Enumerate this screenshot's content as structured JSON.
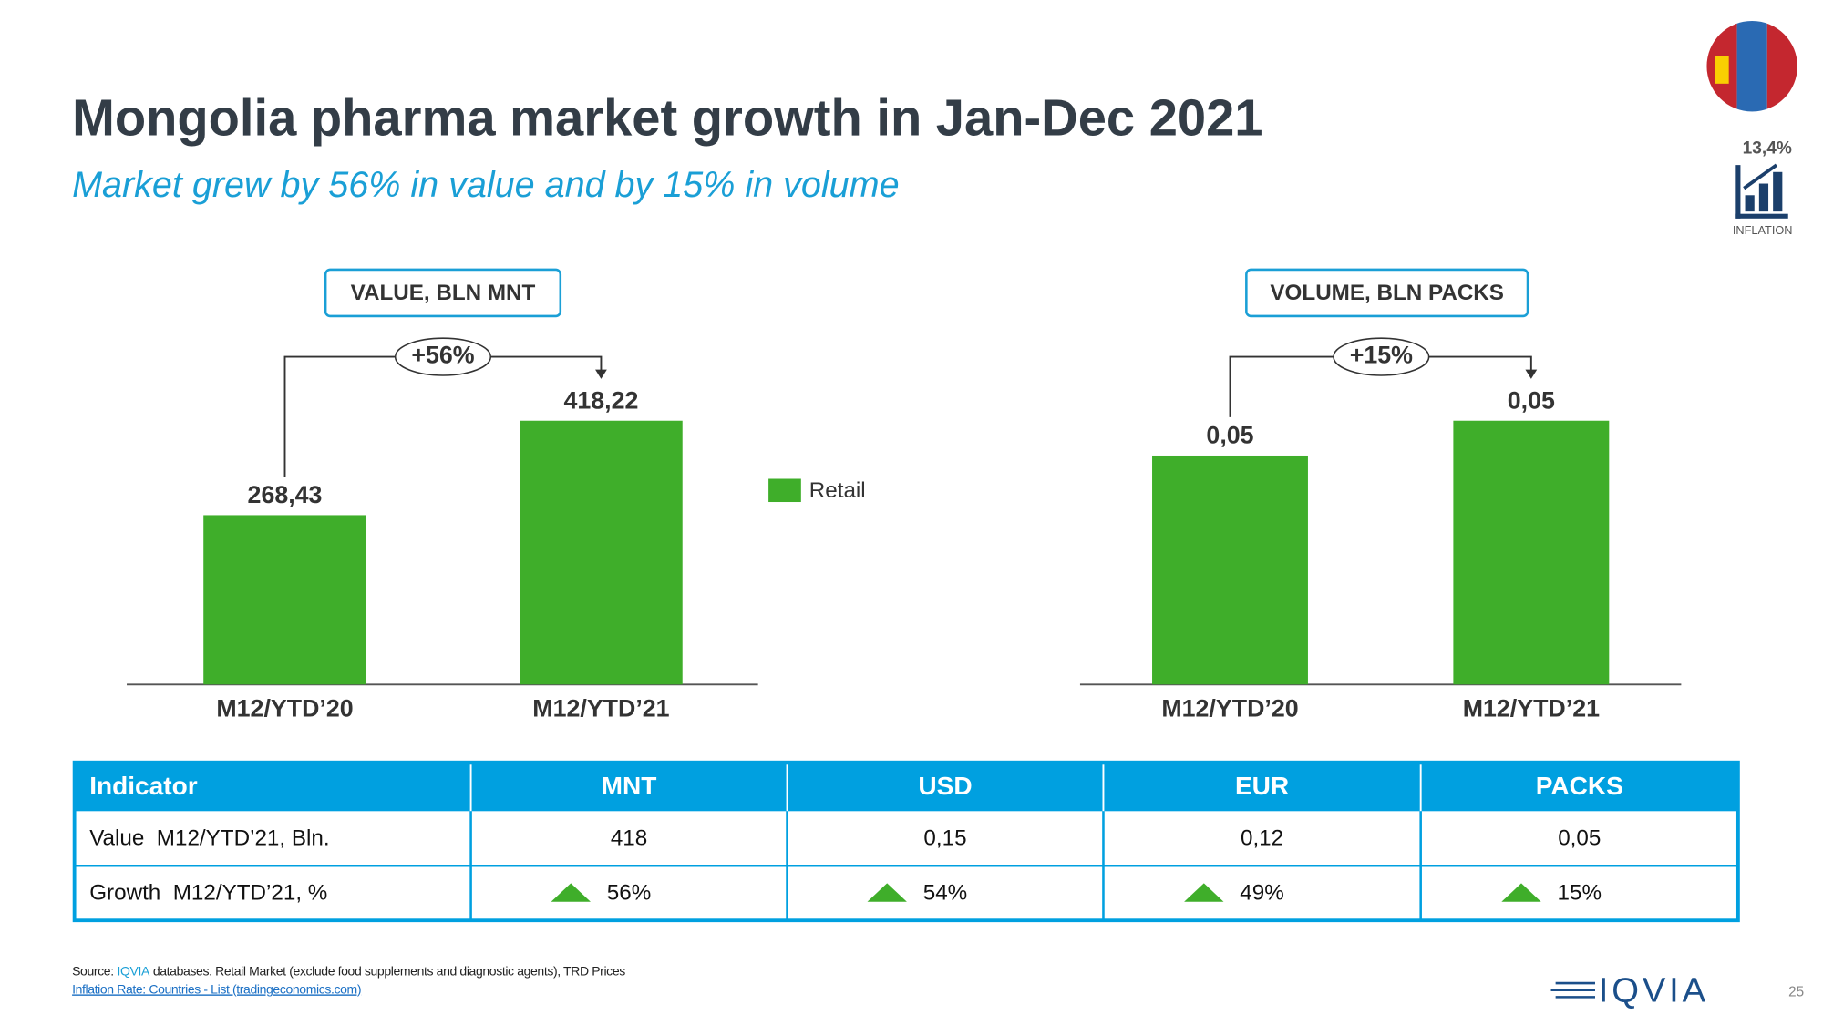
{
  "header": {
    "title": "Mongolia pharma market growth in Jan-Dec 2021",
    "subtitle": "Market grew by 56% in value and by 15% in volume"
  },
  "inflation": {
    "value": "13,4%",
    "label": "INFLATION"
  },
  "chart_data": [
    {
      "type": "bar",
      "title": "VALUE, BLN MNT",
      "categories": [
        "M12/YTD’20",
        "M12/YTD’21"
      ],
      "series": [
        {
          "name": "Retail",
          "color": "#3fae2a",
          "values": [
            268.43,
            418.22
          ],
          "value_labels": [
            "268,43",
            "418,22"
          ]
        }
      ],
      "annotation": "+56%"
    },
    {
      "type": "bar",
      "title": "VOLUME, BLN PACKS",
      "categories": [
        "M12/YTD’20",
        "M12/YTD’21"
      ],
      "series": [
        {
          "color": "#3fae2a",
          "values": [
            0.046,
            0.053
          ],
          "value_labels": [
            "0,05",
            "0,05"
          ]
        }
      ],
      "annotation": "+15%"
    }
  ],
  "table": {
    "columns": [
      "Indicator",
      "MNT",
      "USD",
      "EUR",
      "PACKS"
    ],
    "rows": [
      [
        "Value  M12/YTD’21, Bln.",
        "418",
        "0,15",
        "0,12",
        "0,05"
      ],
      [
        "Growth  M12/YTD’21, %",
        "56%",
        "54%",
        "49%",
        "15%"
      ]
    ]
  },
  "footer": {
    "source_prefix": "Source:",
    "source_highlight": "IQVIA",
    "source_rest": "databases. Retail Market (exclude food supplements and diagnostic agents), TRD Prices",
    "link": "Inflation Rate: Countries - List (tradingeconomics.com)",
    "logo": "IQVIA",
    "page": "25"
  }
}
